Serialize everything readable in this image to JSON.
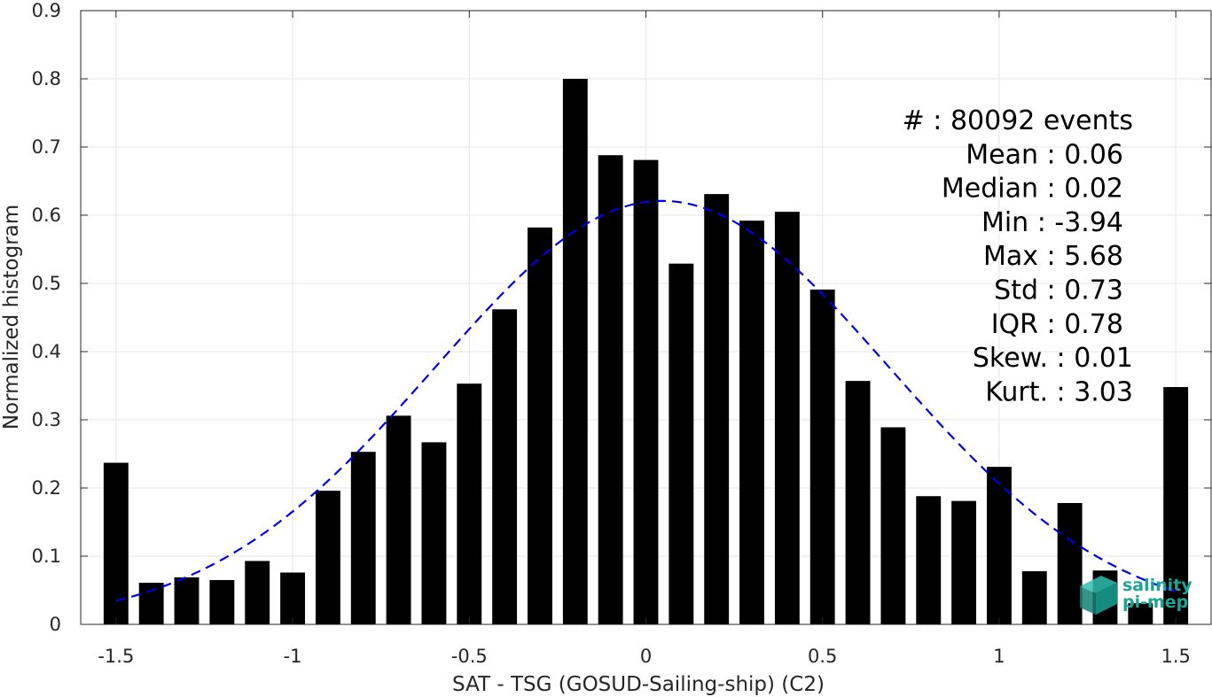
{
  "chart_data": {
    "type": "bar",
    "xlabel": "SAT - TSG (GOSUD-Sailing-ship) (C2)",
    "ylabel": "Normalized histogram",
    "xlim": [
      -1.6,
      1.6
    ],
    "ylim": [
      0,
      0.9
    ],
    "xticks": [
      -1.5,
      -1,
      -0.5,
      0,
      0.5,
      1,
      1.5
    ],
    "xtick_labels": [
      "-1.5",
      "-1",
      "-0.5",
      "0",
      "0.5",
      "1",
      "1.5"
    ],
    "yticks": [
      0,
      0.1,
      0.2,
      0.3,
      0.4,
      0.5,
      0.6,
      0.7,
      0.8,
      0.9
    ],
    "ytick_labels": [
      "0",
      "0.1",
      "0.2",
      "0.3",
      "0.4",
      "0.5",
      "0.6",
      "0.7",
      "0.8",
      "0.9"
    ],
    "grid": true,
    "bar_width": 0.07,
    "x": [
      -1.5,
      -1.4,
      -1.3,
      -1.2,
      -1.1,
      -1.0,
      -0.9,
      -0.8,
      -0.7,
      -0.6,
      -0.5,
      -0.4,
      -0.3,
      -0.2,
      -0.1,
      0.0,
      0.1,
      0.2,
      0.3,
      0.4,
      0.5,
      0.6,
      0.7,
      0.8,
      0.9,
      1.0,
      1.1,
      1.2,
      1.3,
      1.4,
      1.5
    ],
    "values": [
      0.237,
      0.061,
      0.069,
      0.065,
      0.093,
      0.076,
      0.196,
      0.253,
      0.306,
      0.267,
      0.353,
      0.462,
      0.582,
      0.8,
      0.688,
      0.681,
      0.529,
      0.631,
      0.592,
      0.605,
      0.491,
      0.357,
      0.289,
      0.188,
      0.181,
      0.231,
      0.078,
      0.178,
      0.079,
      0.031,
      0.348
    ],
    "bar_color": "#000000",
    "fit": {
      "type": "gaussian",
      "style": "dashed",
      "color": "#0000e6",
      "mean": 0.046,
      "std": 0.643,
      "peak": 0.621,
      "x_range": [
        -1.5,
        1.5
      ]
    },
    "annotation": [
      "#  : 80092 events",
      "Mean : 0.06",
      "Median : 0.02",
      "Min : -3.94",
      "Max : 5.68",
      "Std : 0.73",
      "IQR : 0.78",
      "Skew. : 0.01",
      "Kurt. : 3.03"
    ]
  },
  "logo": {
    "line1": "salinity",
    "line2": "pi-mep",
    "color": "#1aa596"
  }
}
